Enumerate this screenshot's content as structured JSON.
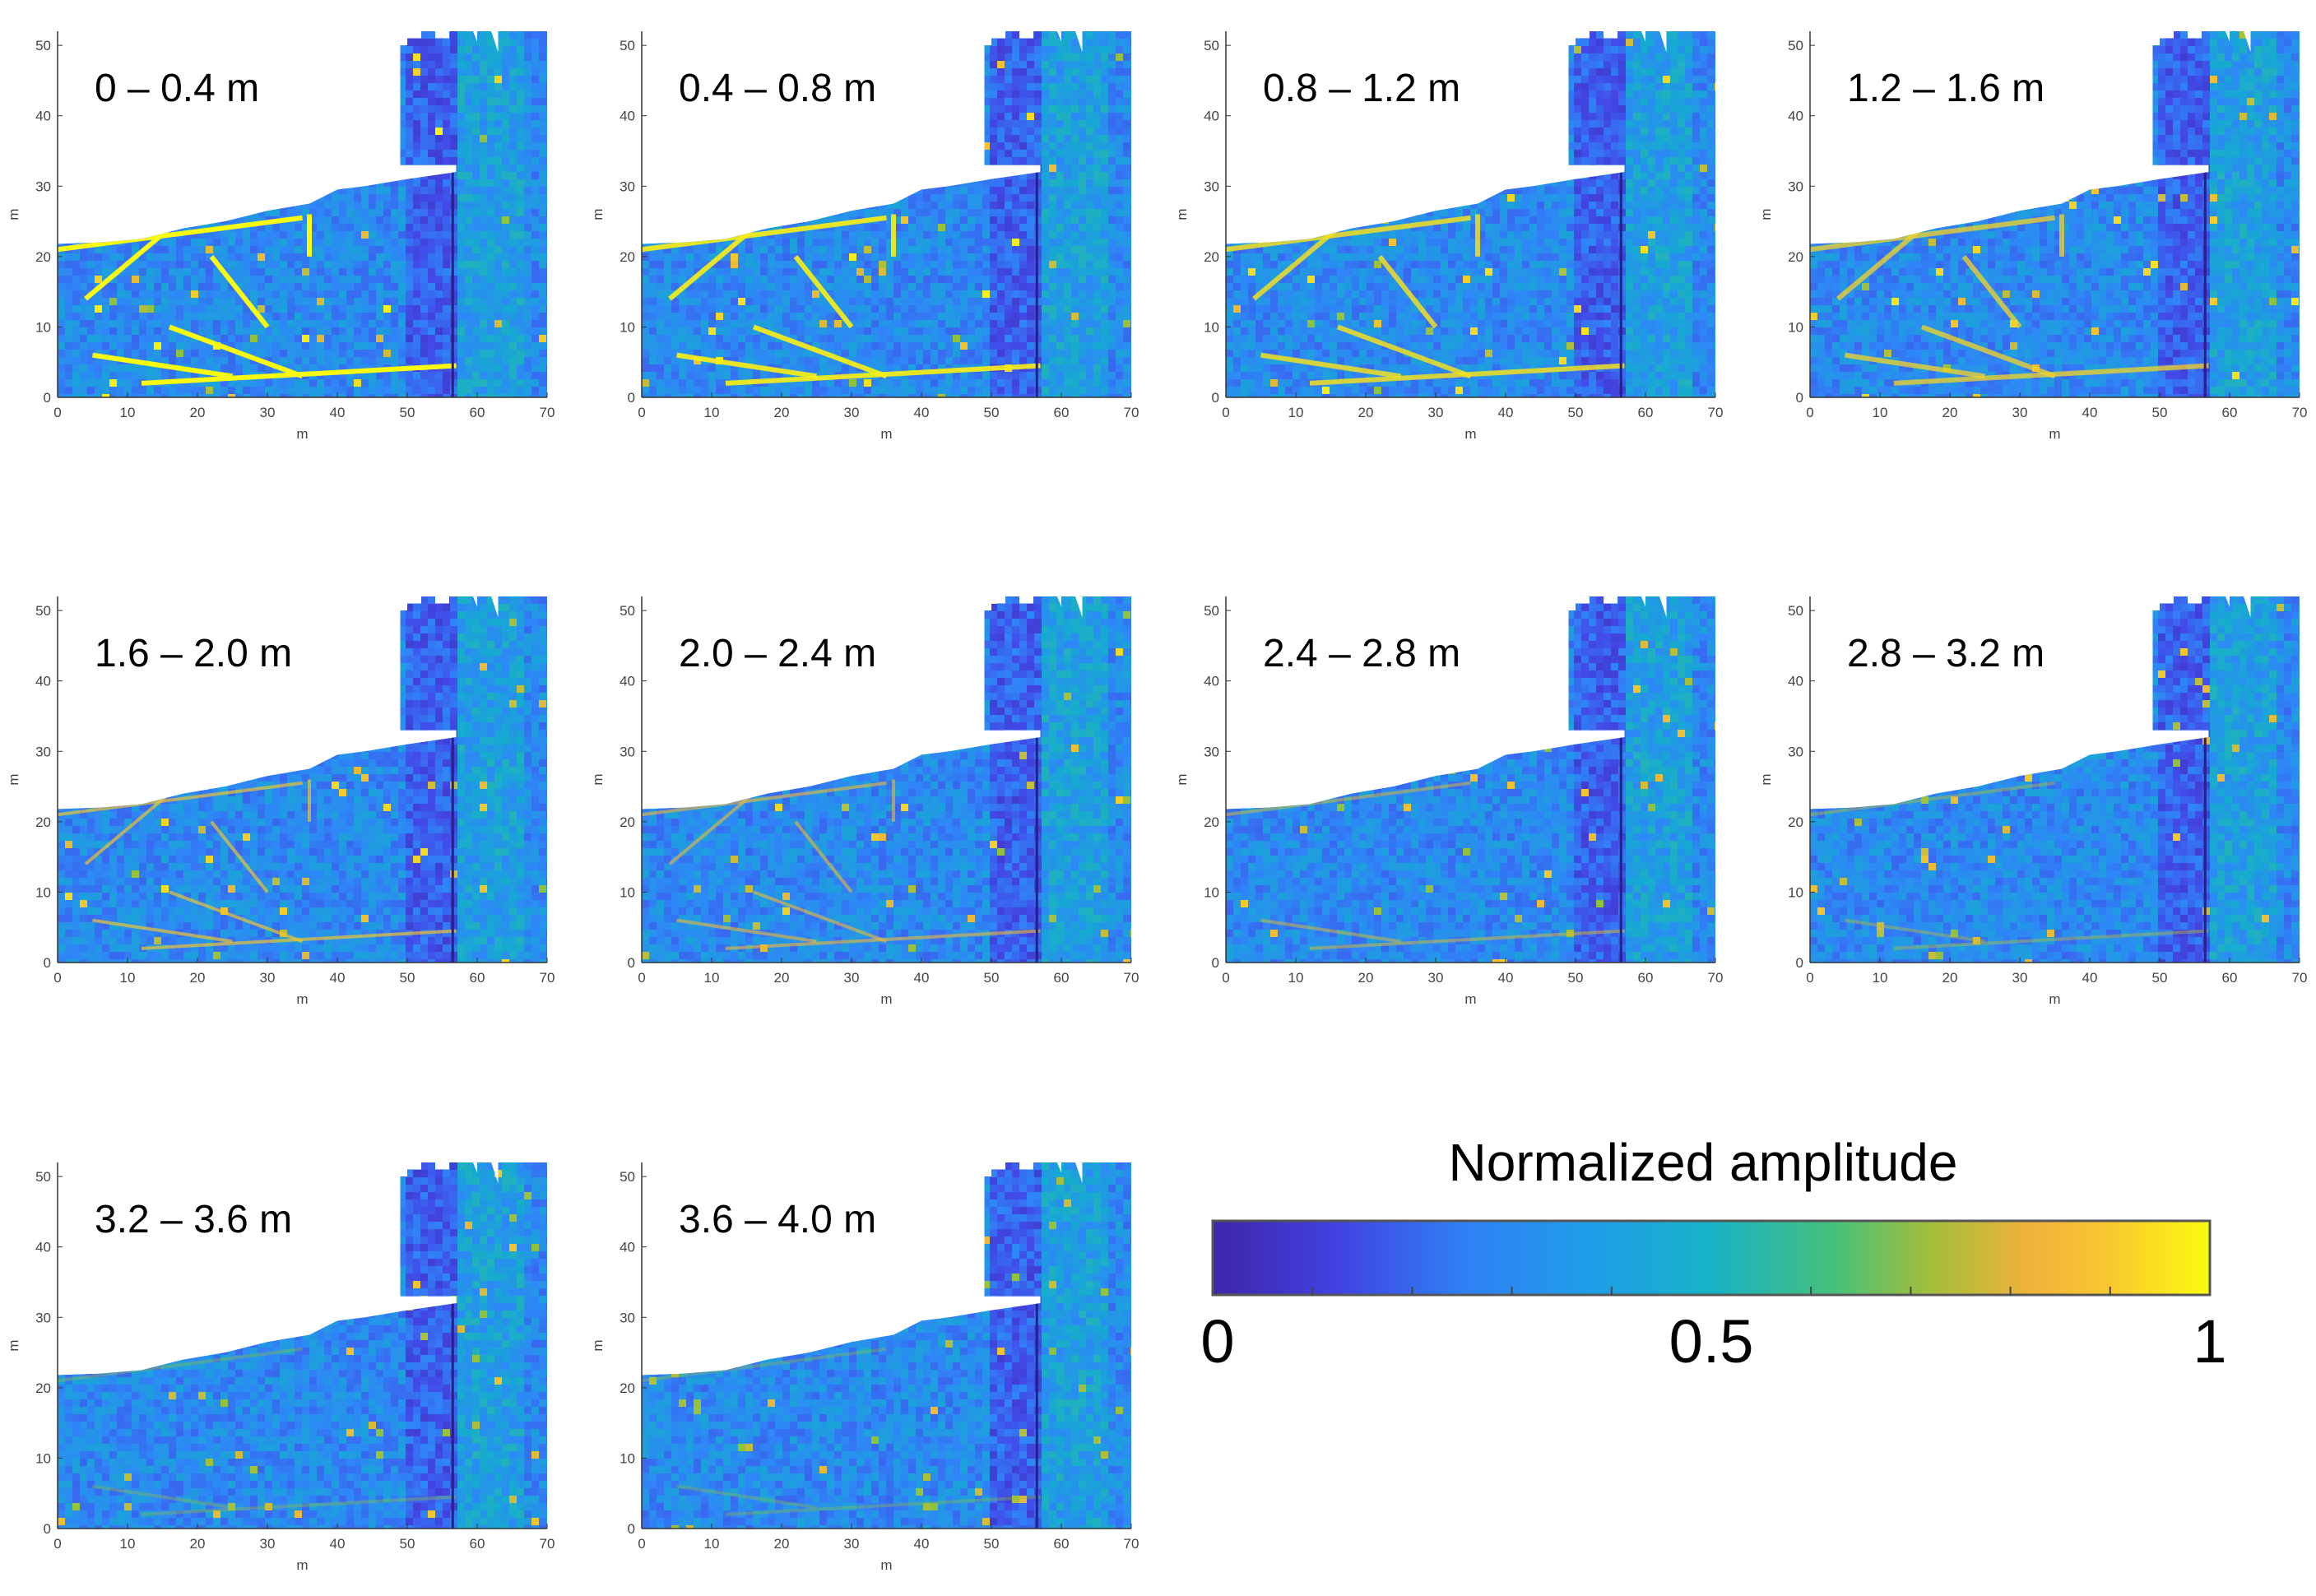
{
  "figure": {
    "colors": {
      "low": "#3e26a8",
      "mid_low": "#2f7ff5",
      "mid": "#17b3c6",
      "mid_high": "#7fc34a",
      "high_orange": "#f9a94a",
      "high": "#f9fb0e",
      "background": "#ffffff"
    }
  },
  "chart_data": [
    {
      "type": "heatmap",
      "title": "0 – 0.4 m",
      "xlabel": "m",
      "ylabel": "m",
      "xlim": [
        0,
        70
      ],
      "ylim": [
        0,
        52
      ],
      "xticks": [
        0,
        10,
        20,
        30,
        40,
        50,
        60,
        70
      ],
      "yticks": [
        0,
        10,
        20,
        30,
        40,
        50
      ]
    },
    {
      "type": "heatmap",
      "title": "0.4 – 0.8 m",
      "xlabel": "m",
      "ylabel": "m",
      "xlim": [
        0,
        70
      ],
      "ylim": [
        0,
        52
      ],
      "xticks": [
        0,
        10,
        20,
        30,
        40,
        50,
        60,
        70
      ],
      "yticks": [
        0,
        10,
        20,
        30,
        40,
        50
      ]
    },
    {
      "type": "heatmap",
      "title": "0.8 – 1.2 m",
      "xlabel": "m",
      "ylabel": "m",
      "xlim": [
        0,
        70
      ],
      "ylim": [
        0,
        52
      ],
      "xticks": [
        0,
        10,
        20,
        30,
        40,
        50,
        60,
        70
      ],
      "yticks": [
        0,
        10,
        20,
        30,
        40,
        50
      ]
    },
    {
      "type": "heatmap",
      "title": "1.2 – 1.6 m",
      "xlabel": "m",
      "ylabel": "m",
      "xlim": [
        0,
        70
      ],
      "ylim": [
        0,
        52
      ],
      "xticks": [
        0,
        10,
        20,
        30,
        40,
        50,
        60,
        70
      ],
      "yticks": [
        0,
        10,
        20,
        30,
        40,
        50
      ]
    },
    {
      "type": "heatmap",
      "title": "1.6 – 2.0 m",
      "xlabel": "m",
      "ylabel": "m",
      "xlim": [
        0,
        70
      ],
      "ylim": [
        0,
        52
      ],
      "xticks": [
        0,
        10,
        20,
        30,
        40,
        50,
        60,
        70
      ],
      "yticks": [
        0,
        10,
        20,
        30,
        40,
        50
      ]
    },
    {
      "type": "heatmap",
      "title": "2.0 – 2.4 m",
      "xlabel": "m",
      "ylabel": "m",
      "xlim": [
        0,
        70
      ],
      "ylim": [
        0,
        52
      ],
      "xticks": [
        0,
        10,
        20,
        30,
        40,
        50,
        60,
        70
      ],
      "yticks": [
        0,
        10,
        20,
        30,
        40,
        50
      ]
    },
    {
      "type": "heatmap",
      "title": "2.4 – 2.8 m",
      "xlabel": "m",
      "ylabel": "m",
      "xlim": [
        0,
        70
      ],
      "ylim": [
        0,
        52
      ],
      "xticks": [
        0,
        10,
        20,
        30,
        40,
        50,
        60,
        70
      ],
      "yticks": [
        0,
        10,
        20,
        30,
        40,
        50
      ]
    },
    {
      "type": "heatmap",
      "title": "2.8 – 3.2 m",
      "xlabel": "m",
      "ylabel": "m",
      "xlim": [
        0,
        70
      ],
      "ylim": [
        0,
        52
      ],
      "xticks": [
        0,
        10,
        20,
        30,
        40,
        50,
        60,
        70
      ],
      "yticks": [
        0,
        10,
        20,
        30,
        40,
        50
      ]
    },
    {
      "type": "heatmap",
      "title": "3.2 – 3.6 m",
      "xlabel": "m",
      "ylabel": "m",
      "xlim": [
        0,
        70
      ],
      "ylim": [
        0,
        52
      ],
      "xticks": [
        0,
        10,
        20,
        30,
        40,
        50,
        60,
        70
      ],
      "yticks": [
        0,
        10,
        20,
        30,
        40,
        50
      ]
    },
    {
      "type": "heatmap",
      "title": "3.6 – 4.0 m",
      "xlabel": "m",
      "ylabel": "m",
      "xlim": [
        0,
        70
      ],
      "ylim": [
        0,
        52
      ],
      "xticks": [
        0,
        10,
        20,
        30,
        40,
        50,
        60,
        70
      ],
      "yticks": [
        0,
        10,
        20,
        30,
        40,
        50
      ]
    }
  ],
  "colorbar": {
    "title": "Normalized amplitude",
    "range": [
      0,
      1
    ],
    "tick_labels": [
      "0",
      "0.5",
      "1"
    ],
    "tick_values": [
      0,
      0.5,
      1
    ],
    "minor_tick_values": [
      0.1,
      0.2,
      0.3,
      0.4,
      0.6,
      0.7,
      0.8,
      0.9
    ],
    "colormap": "parula"
  }
}
